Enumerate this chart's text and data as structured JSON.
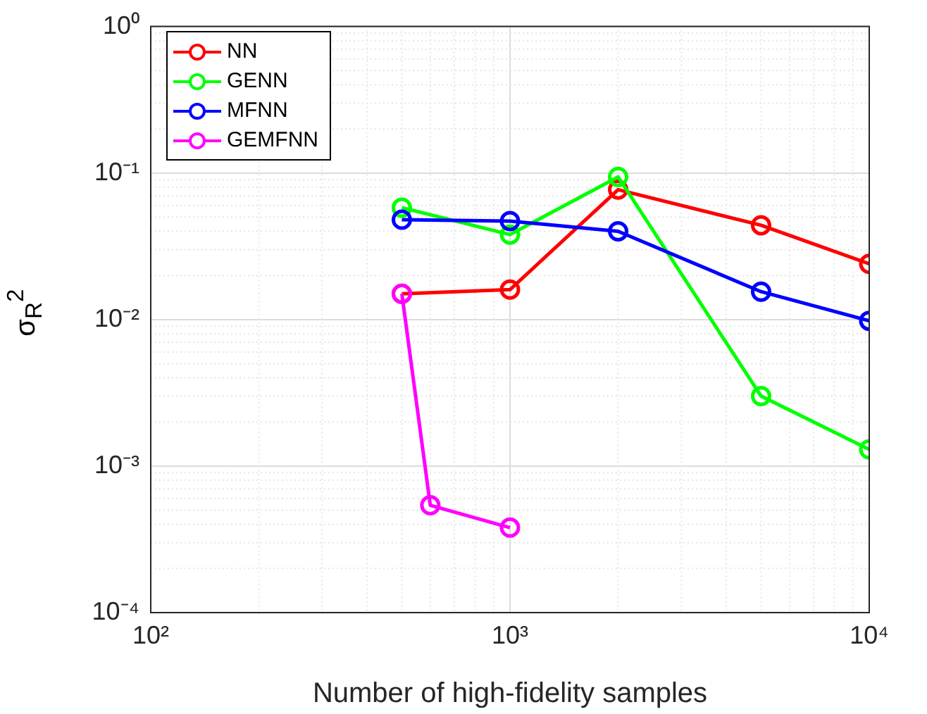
{
  "chart_data": {
    "type": "line",
    "xlabel": "Number of high-fidelity samples",
    "ylabel": "σ$_{R}$$^{2}$",
    "log": "xy",
    "grid": true,
    "legend": "top left",
    "marker": "circle",
    "line_style": "solid",
    "xlim": [
      100,
      10000
    ],
    "xticks": [
      {
        "value": 100,
        "label": "10²"
      },
      {
        "value": 1000,
        "label": "10³"
      },
      {
        "value": 10000,
        "label": "10⁴"
      }
    ],
    "ylim": [
      0.0001,
      1
    ],
    "yticks": [
      {
        "value": 0.0001,
        "label": "10⁻⁴"
      },
      {
        "value": 0.001,
        "label": "10⁻³"
      },
      {
        "value": 0.01,
        "label": "10⁻²"
      },
      {
        "value": 0.1,
        "label": "10⁻¹"
      },
      {
        "value": 1,
        "label": "10⁰"
      }
    ],
    "series": [
      {
        "name": "NN",
        "color": "#ff0000",
        "x": [
          500,
          1000,
          2000,
          5000,
          10000
        ],
        "values": [
          0.015,
          0.016,
          0.077,
          0.044,
          0.024
        ]
      },
      {
        "name": "GENN",
        "color": "#00ff00",
        "x": [
          500,
          1000,
          2000,
          5000,
          10000
        ],
        "values": [
          0.058,
          0.038,
          0.094,
          0.003,
          0.0013
        ]
      },
      {
        "name": "MFNN",
        "color": "#0000ff",
        "x": [
          500,
          1000,
          2000,
          5000,
          10000
        ],
        "values": [
          0.048,
          0.047,
          0.04,
          0.0155,
          0.0098
        ]
      },
      {
        "name": "GEMFNN",
        "color": "#ff00ff",
        "x": [
          500,
          600,
          1000
        ],
        "values": [
          0.015,
          0.00054,
          0.00038
        ]
      }
    ]
  }
}
